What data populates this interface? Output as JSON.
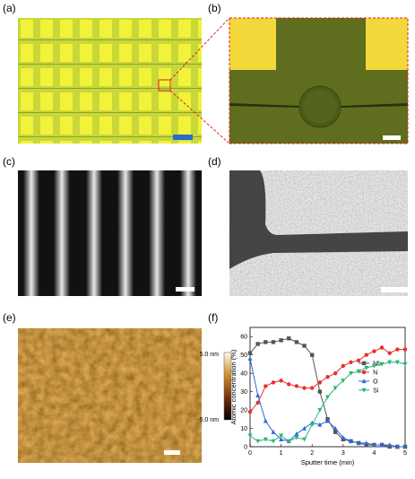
{
  "panels": [
    "(a)",
    "(b)",
    "(c)",
    "(d)",
    "(e)",
    "(f)"
  ],
  "colorbar": {
    "max_label": "5.0 nm",
    "min_label": "-5.0 nm"
  },
  "chart_data": {
    "type": "line",
    "xlabel": "Sputter time (min)",
    "ylabel": "Atomic concentration (%)",
    "x": [
      0,
      0.25,
      0.5,
      0.75,
      1,
      1.25,
      1.5,
      1.75,
      2,
      2.25,
      2.5,
      2.75,
      3,
      3.25,
      3.5,
      3.75,
      4,
      4.25,
      4.5,
      4.75,
      5
    ],
    "xlim": [
      0,
      5
    ],
    "xticks": [
      0,
      1,
      2,
      3,
      4,
      5
    ],
    "ylim": [
      0,
      65
    ],
    "yticks": [
      0,
      10,
      20,
      30,
      40,
      50,
      60
    ],
    "legend": "right",
    "series": [
      {
        "name": "Nb",
        "color": "#555555",
        "marker": "square",
        "values": [
          51,
          56,
          57,
          57,
          58,
          59,
          57,
          55,
          50,
          30,
          15,
          8,
          4,
          3,
          2,
          1,
          1,
          1,
          0,
          0,
          0
        ]
      },
      {
        "name": "N",
        "color": "#e8302a",
        "marker": "circle",
        "values": [
          19,
          24,
          33,
          35,
          36,
          34,
          33,
          32,
          32,
          35,
          38,
          40,
          44,
          46,
          47,
          50,
          52,
          54,
          51,
          53,
          53
        ]
      },
      {
        "name": "O",
        "color": "#2a6ad8",
        "marker": "triangle-up",
        "values": [
          48,
          28,
          14,
          8,
          4,
          3,
          7,
          10,
          13,
          12,
          14,
          10,
          5,
          3,
          2,
          2,
          1,
          1,
          1,
          0,
          0
        ]
      },
      {
        "name": "Si",
        "color": "#2bb673",
        "marker": "triangle-down",
        "values": [
          6,
          3,
          4,
          3,
          6,
          3,
          5,
          4,
          12,
          20,
          27,
          32,
          36,
          40,
          41,
          43,
          44,
          45,
          46,
          46,
          45
        ]
      }
    ]
  }
}
